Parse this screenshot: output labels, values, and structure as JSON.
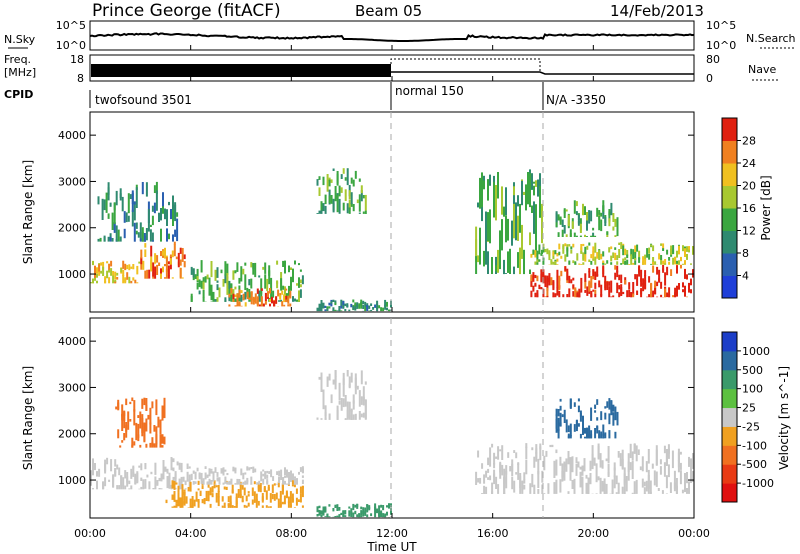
{
  "header": {
    "station": "Prince George (fitACF)",
    "beam": "Beam 05",
    "date": "14/Feb/2013"
  },
  "top_panels": {
    "nsky_label": "N.Sky",
    "nsearch_label": "N.Search",
    "freq_label_line1": "Freq.",
    "freq_label_line2": "[MHz]",
    "nave_label": "Nave",
    "cpid_label": "CPID",
    "noise_left_ticks": [
      "10^5",
      "10^0"
    ],
    "noise_right_ticks": [
      "10^5",
      "10^0"
    ],
    "freq_left_ticks": [
      "18",
      "8"
    ],
    "nave_right_ticks": [
      "80",
      "0"
    ],
    "cpid_segments": [
      {
        "label": "twofsound 3501",
        "start_hour": 0
      },
      {
        "label": "normal 150",
        "start_hour": 12
      },
      {
        "label": "N/A -3350",
        "start_hour": 18
      }
    ]
  },
  "axes": {
    "x_ticks": [
      "00:00",
      "04:00",
      "08:00",
      "12:00",
      "16:00",
      "20:00",
      "00:00"
    ],
    "xlabel": "Time UT",
    "y_ticks": [
      "1000",
      "2000",
      "3000",
      "4000"
    ],
    "ylabel": "Slant Range [km]"
  },
  "colorbars": {
    "power_label": "Power [dB]",
    "power_ticks": [
      "4",
      "8",
      "12",
      "16",
      "20",
      "24",
      "28"
    ],
    "power_colors": [
      "#1f3fd8",
      "#2a5fb0",
      "#2f8a70",
      "#3aa640",
      "#a8c830",
      "#f0c020",
      "#f08020",
      "#e02010"
    ],
    "velocity_label": "Velocity [m s^-1]",
    "velocity_ticks": [
      "1000",
      "500",
      "100",
      "25",
      "-25",
      "-100",
      "-500",
      "-1000"
    ],
    "velocity_colors": [
      "#1c3ec8",
      "#2a6aa0",
      "#3a9a6a",
      "#5cc040",
      "#c8c8c8",
      "#f0a020",
      "#f07020",
      "#e83a14",
      "#e01010"
    ]
  },
  "chart_data": {
    "type": "heatmap",
    "x_range_hours": [
      0,
      24
    ],
    "y_range_km": [
      180,
      4500
    ],
    "panels": [
      {
        "quantity": "Power [dB]",
        "echo_regions": [
          {
            "t_start": 0.0,
            "t_end": 2.0,
            "r_start": 800,
            "r_end": 1300,
            "level": 20
          },
          {
            "t_start": 2.0,
            "t_end": 3.8,
            "r_start": 900,
            "r_end": 1700,
            "level": 24
          },
          {
            "t_start": 0.3,
            "t_end": 3.5,
            "r_start": 1700,
            "r_end": 3000,
            "level": 8
          },
          {
            "t_start": 4.0,
            "t_end": 8.5,
            "r_start": 400,
            "r_end": 1300,
            "level": 12
          },
          {
            "t_start": 5.5,
            "t_end": 8.0,
            "r_start": 300,
            "r_end": 700,
            "level": 22
          },
          {
            "t_start": 9.0,
            "t_end": 11.0,
            "r_start": 2300,
            "r_end": 3300,
            "level": 10
          },
          {
            "t_start": 9.0,
            "t_end": 12.0,
            "r_start": 200,
            "r_end": 450,
            "level": 6
          },
          {
            "t_start": 15.3,
            "t_end": 18.0,
            "r_start": 1000,
            "r_end": 3300,
            "level": 10
          },
          {
            "t_start": 17.5,
            "t_end": 24.0,
            "r_start": 500,
            "r_end": 1200,
            "level": 28
          },
          {
            "t_start": 17.5,
            "t_end": 24.0,
            "r_start": 1200,
            "r_end": 1700,
            "level": 16
          },
          {
            "t_start": 18.5,
            "t_end": 21.0,
            "r_start": 1800,
            "r_end": 2600,
            "level": 10
          }
        ]
      },
      {
        "quantity": "Velocity [m s^-1]",
        "echo_regions": [
          {
            "t_start": 0.0,
            "t_end": 4.0,
            "r_start": 800,
            "r_end": 1500,
            "level": 0
          },
          {
            "t_start": 1.0,
            "t_end": 3.0,
            "r_start": 1700,
            "r_end": 2800,
            "level": -500
          },
          {
            "t_start": 3.0,
            "t_end": 8.5,
            "r_start": 400,
            "r_end": 1000,
            "level": -100
          },
          {
            "t_start": 4.0,
            "t_end": 8.5,
            "r_start": 900,
            "r_end": 1300,
            "level": 0
          },
          {
            "t_start": 9.0,
            "t_end": 11.0,
            "r_start": 2300,
            "r_end": 3400,
            "level": 0
          },
          {
            "t_start": 9.0,
            "t_end": 12.0,
            "r_start": 200,
            "r_end": 500,
            "level": 100
          },
          {
            "t_start": 15.3,
            "t_end": 24.0,
            "r_start": 700,
            "r_end": 1800,
            "level": 0
          },
          {
            "t_start": 18.5,
            "t_end": 21.0,
            "r_start": 1900,
            "r_end": 2800,
            "level": 500
          }
        ]
      }
    ]
  }
}
